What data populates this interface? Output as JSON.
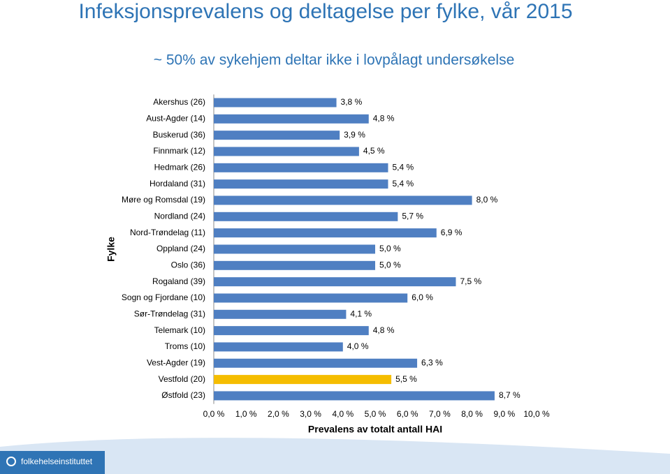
{
  "chart_data": {
    "type": "bar",
    "orientation": "horizontal",
    "title": "Infeksjonsprevalens og deltagelse per fylke, vår 2015",
    "subtitle": "~ 50% av sykehjem deltar ikke i lovpålagt undersøkelse",
    "ylabel": "Fylke",
    "xlabel": "Prevalens av totalt antall HAI",
    "categories": [
      "Akershus (26)",
      "Aust-Agder (14)",
      "Buskerud (36)",
      "Finnmark (12)",
      "Hedmark (26)",
      "Hordaland (31)",
      "Møre og Romsdal (19)",
      "Nordland (24)",
      "Nord-Trøndelag (11)",
      "Oppland (24)",
      "Oslo (36)",
      "Rogaland (39)",
      "Sogn og Fjordane (10)",
      "Sør-Trøndelag (31)",
      "Telemark (10)",
      "Troms (10)",
      "Vest-Agder (19)",
      "Vestfold (20)",
      "Østfold (23)"
    ],
    "values": [
      3.8,
      4.8,
      3.9,
      4.5,
      5.4,
      5.4,
      8.0,
      5.7,
      6.9,
      5.0,
      5.0,
      7.5,
      6.0,
      4.1,
      4.8,
      4.0,
      6.3,
      5.5,
      8.7
    ],
    "value_labels": [
      "3,8 %",
      "4,8 %",
      "3,9 %",
      "4,5 %",
      "5,4 %",
      "5,4 %",
      "8,0 %",
      "5,7 %",
      "6,9 %",
      "5,0 %",
      "5,0 %",
      "7,5 %",
      "6,0 %",
      "4,1 %",
      "4,8 %",
      "4,0 %",
      "6,3 %",
      "5,5 %",
      "8,7 %"
    ],
    "colors": [
      "#4f7fc2",
      "#4f7fc2",
      "#4f7fc2",
      "#4f7fc2",
      "#4f7fc2",
      "#4f7fc2",
      "#4f7fc2",
      "#4f7fc2",
      "#4f7fc2",
      "#4f7fc2",
      "#4f7fc2",
      "#4f7fc2",
      "#4f7fc2",
      "#4f7fc2",
      "#4f7fc2",
      "#4f7fc2",
      "#4f7fc2",
      "#f5bd00",
      "#4f7fc2"
    ],
    "xlim": [
      0,
      10
    ],
    "xticks": [
      {
        "value": 0,
        "label": "0,0 %"
      },
      {
        "value": 1,
        "label": "1,0 %"
      },
      {
        "value": 2,
        "label": "2,0 %"
      },
      {
        "value": 3,
        "label": "3,0 %"
      },
      {
        "value": 4,
        "label": "4,0 %"
      },
      {
        "value": 5,
        "label": "5,0 %"
      },
      {
        "value": 6,
        "label": "6,0 %"
      },
      {
        "value": 7,
        "label": "7,0 %"
      },
      {
        "value": 8,
        "label": "8,0 %"
      },
      {
        "value": 9,
        "label": "9,0 %"
      },
      {
        "value": 10,
        "label": "10,0 %"
      }
    ],
    "grid": false
  },
  "footer": {
    "logo": "folkehelseinstituttet"
  }
}
